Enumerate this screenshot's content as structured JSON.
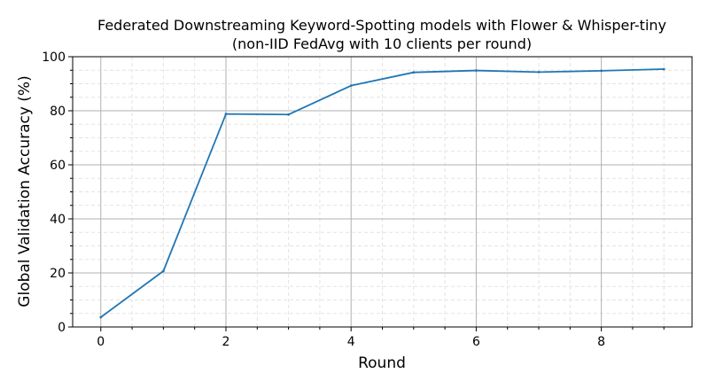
{
  "chart_data": {
    "type": "line",
    "title": "Federated Downstreaming Keyword-Spotting models with Flower & Whisper-tiny",
    "subtitle": "(non-IID FedAvg with 10 clients per round)",
    "xlabel": "Round",
    "ylabel": "Global Validation Accuracy (%)",
    "x": [
      0,
      1,
      2,
      3,
      4,
      5,
      6,
      7,
      8,
      9
    ],
    "series": [
      {
        "values": [
          3.6,
          20.7,
          78.8,
          78.6,
          89.3,
          94.2,
          94.9,
          94.3,
          94.8,
          95.4
        ],
        "color": "#1f77b4"
      }
    ],
    "xlim": [
      -0.45,
      9.45
    ],
    "ylim": [
      0,
      100
    ],
    "xticks": [
      0,
      2,
      4,
      6,
      8
    ],
    "xtick_labels": [
      "0",
      "2",
      "4",
      "6",
      "8"
    ],
    "yticks": [
      0,
      20,
      40,
      60,
      80,
      100
    ],
    "ytick_labels": [
      "0",
      "20",
      "40",
      "60",
      "80",
      "100"
    ],
    "grid": true,
    "minor_grid": true,
    "legend": "none"
  }
}
